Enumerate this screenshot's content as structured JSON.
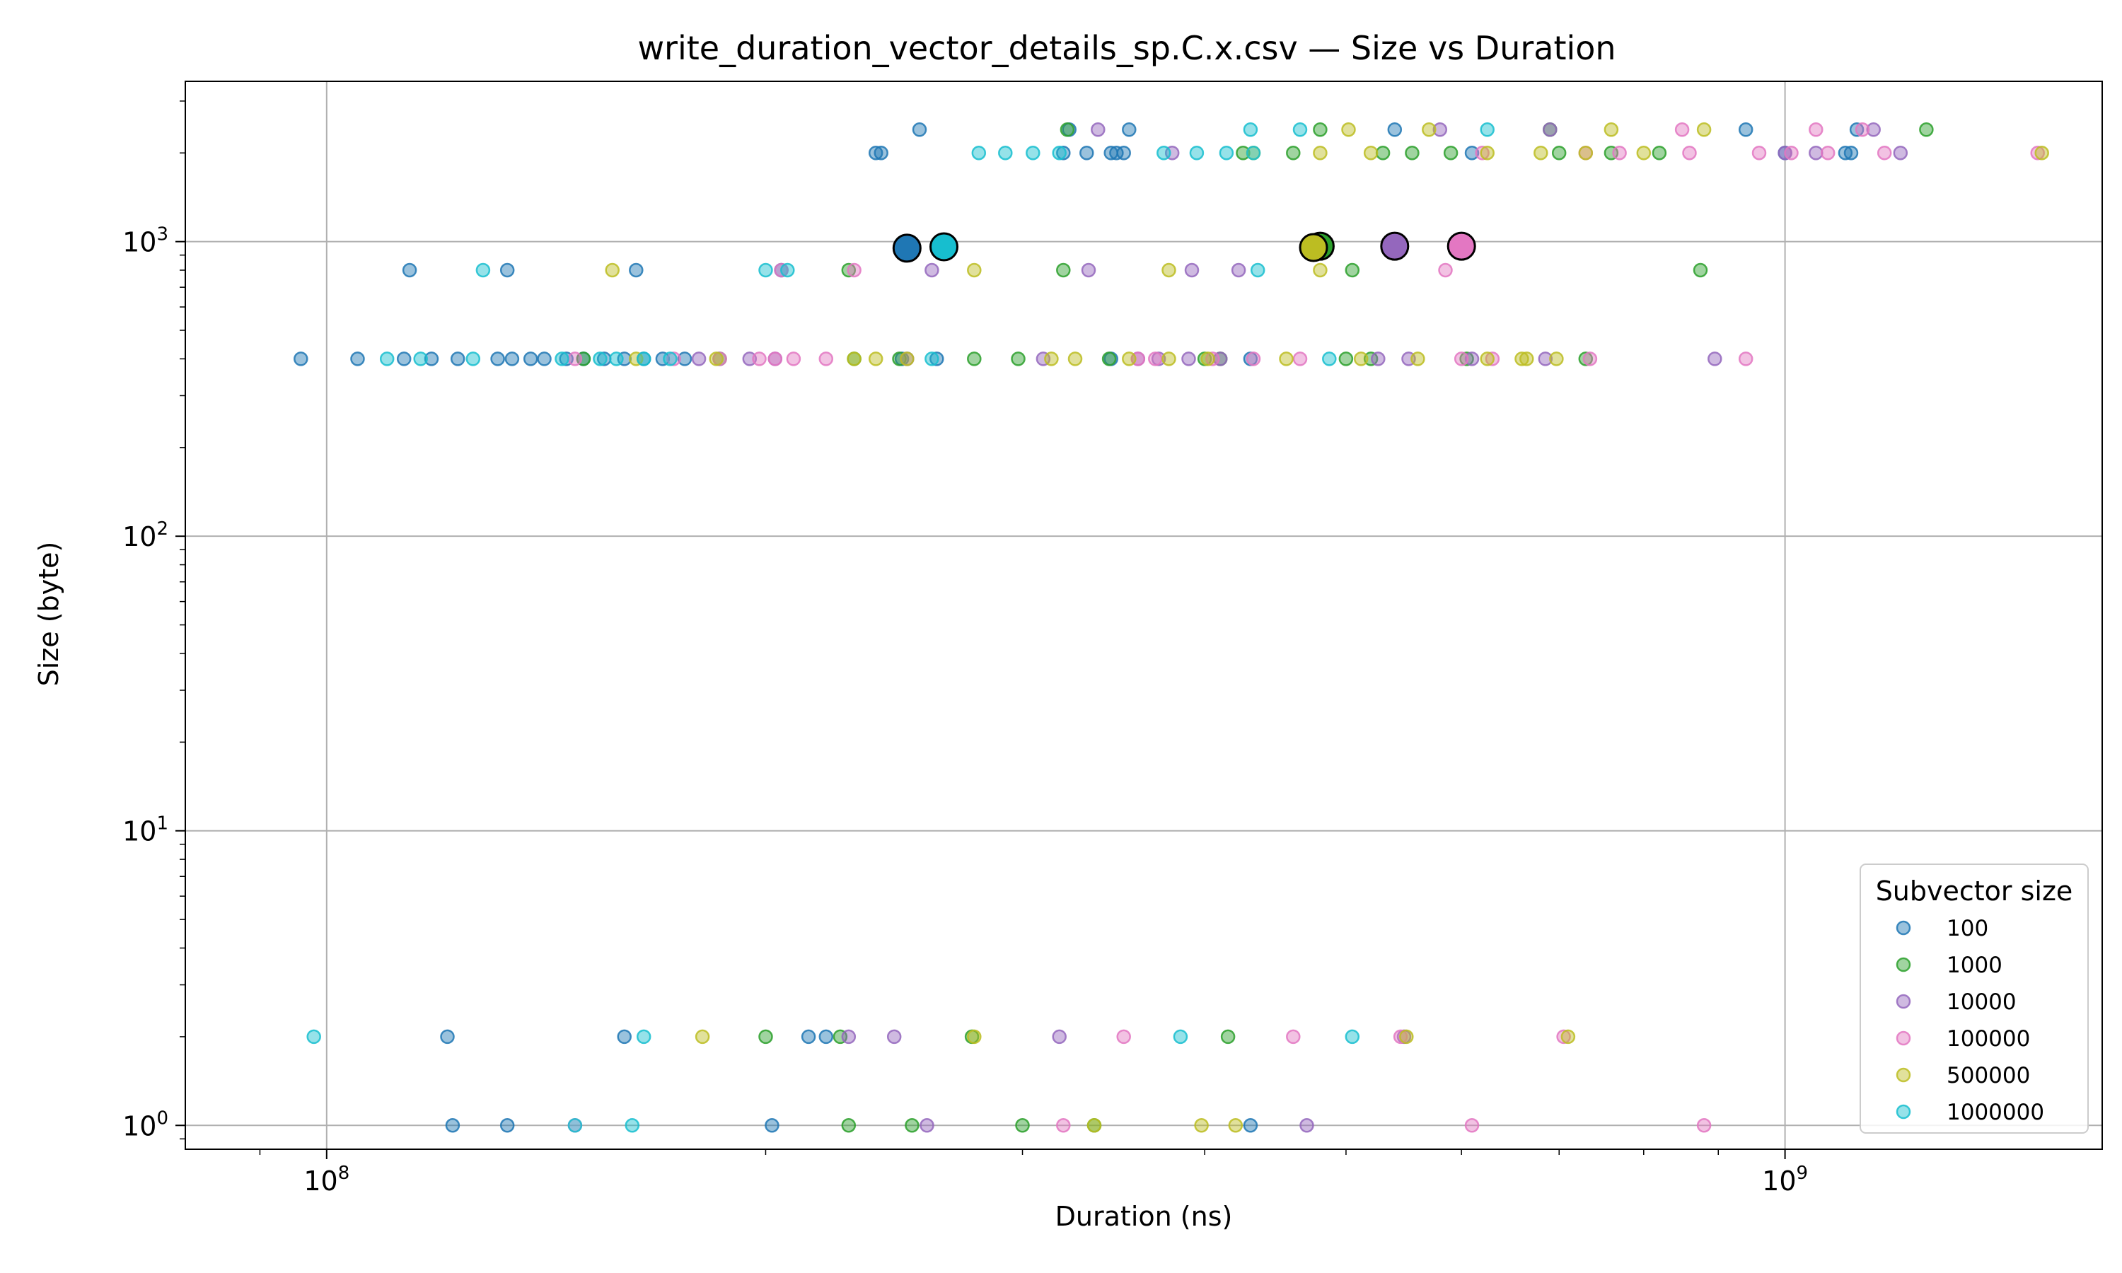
{
  "chart_data": {
    "type": "scatter",
    "title": "write_duration_vector_details_sp.C.x.csv — Size vs Duration",
    "xlabel": "Duration (ns)",
    "ylabel": "Size (byte)",
    "xscale": "log",
    "yscale": "log",
    "xlim": [
      80000000.0,
      1650000000.0
    ],
    "ylim": [
      0.83,
      3500
    ],
    "grid": true,
    "legend": {
      "title": "Subvector size",
      "placement": "lower-right"
    },
    "x_ticks": [
      {
        "value": 100000000.0,
        "base": "10",
        "exp": "8"
      },
      {
        "value": 1000000000.0,
        "base": "10",
        "exp": "9"
      }
    ],
    "y_ticks": [
      {
        "value": 1,
        "base": "10",
        "exp": "0"
      },
      {
        "value": 10,
        "base": "10",
        "exp": "1"
      },
      {
        "value": 100,
        "base": "10",
        "exp": "2"
      },
      {
        "value": 1000,
        "base": "10",
        "exp": "3"
      }
    ],
    "series": [
      {
        "name": "100",
        "color": "#1f77b4",
        "points": [
          [
            96000000,
            400
          ],
          [
            105000000,
            400
          ],
          [
            113000000,
            400
          ],
          [
            118000000,
            400
          ],
          [
            123000000,
            400
          ],
          [
            131000000,
            400
          ],
          [
            134000000,
            400
          ],
          [
            138000000,
            400
          ],
          [
            141000000,
            400
          ],
          [
            146000000,
            400
          ],
          [
            150000000,
            400
          ],
          [
            155000000,
            400
          ],
          [
            160000000,
            400
          ],
          [
            165000000,
            400
          ],
          [
            170000000,
            400
          ],
          [
            176000000,
            400
          ],
          [
            248000000,
            400
          ],
          [
            262000000,
            400
          ],
          [
            345000000,
            400
          ],
          [
            430000000,
            400
          ],
          [
            114000000,
            800
          ],
          [
            133000000,
            800
          ],
          [
            163000000,
            800
          ],
          [
            205000000,
            800
          ],
          [
            238000000,
            2000
          ],
          [
            240000000,
            2000
          ],
          [
            320000000,
            2000
          ],
          [
            332000000,
            2000
          ],
          [
            345000000,
            2000
          ],
          [
            348000000,
            2000
          ],
          [
            352000000,
            2000
          ],
          [
            1000000000,
            2000
          ],
          [
            1100000000,
            2000
          ],
          [
            1110000000,
            2000
          ],
          [
            610000000,
            2000
          ],
          [
            255000000,
            2400
          ],
          [
            323000000,
            2400
          ],
          [
            355000000,
            2400
          ],
          [
            540000000,
            2400
          ],
          [
            940000000,
            2400
          ],
          [
            1120000000,
            2400
          ],
          [
            121000000,
            2
          ],
          [
            160000000,
            2
          ],
          [
            214000000,
            2
          ],
          [
            220000000,
            2
          ],
          [
            122000000,
            1
          ],
          [
            133000000,
            1
          ],
          [
            202000000,
            1
          ],
          [
            430000000,
            1
          ],
          [
            250000000,
            950
          ]
        ]
      },
      {
        "name": "1000",
        "color": "#2ca02c",
        "points": [
          [
            150000000,
            400
          ],
          [
            186000000,
            400
          ],
          [
            230000000,
            400
          ],
          [
            247000000,
            400
          ],
          [
            278000000,
            400
          ],
          [
            298000000,
            400
          ],
          [
            344000000,
            400
          ],
          [
            400000000,
            400
          ],
          [
            410000000,
            400
          ],
          [
            500000000,
            400
          ],
          [
            520000000,
            400
          ],
          [
            605000000,
            400
          ],
          [
            730000000,
            400
          ],
          [
            228000000,
            800
          ],
          [
            320000000,
            800
          ],
          [
            505000000,
            800
          ],
          [
            875000000,
            800
          ],
          [
            425000000,
            2000
          ],
          [
            460000000,
            2000
          ],
          [
            530000000,
            2000
          ],
          [
            555000000,
            2000
          ],
          [
            590000000,
            2000
          ],
          [
            700000000,
            2000
          ],
          [
            760000000,
            2000
          ],
          [
            820000000,
            2000
          ],
          [
            322000000,
            2400
          ],
          [
            480000000,
            2400
          ],
          [
            690000000,
            2400
          ],
          [
            1250000000,
            2400
          ],
          [
            200000000,
            2
          ],
          [
            225000000,
            2
          ],
          [
            277000000,
            2
          ],
          [
            415000000,
            2
          ],
          [
            228000000,
            1
          ],
          [
            252000000,
            1
          ],
          [
            300000000,
            1
          ],
          [
            336000000,
            1
          ],
          [
            480000000,
            965
          ]
        ]
      },
      {
        "name": "10000",
        "color": "#9467bd",
        "points": [
          [
            180000000,
            400
          ],
          [
            195000000,
            400
          ],
          [
            203000000,
            400
          ],
          [
            250000000,
            400
          ],
          [
            310000000,
            400
          ],
          [
            360000000,
            400
          ],
          [
            372000000,
            400
          ],
          [
            390000000,
            400
          ],
          [
            410000000,
            400
          ],
          [
            526000000,
            400
          ],
          [
            552000000,
            400
          ],
          [
            610000000,
            400
          ],
          [
            685000000,
            400
          ],
          [
            895000000,
            400
          ],
          [
            260000000,
            800
          ],
          [
            333000000,
            800
          ],
          [
            392000000,
            800
          ],
          [
            422000000,
            800
          ],
          [
            380000000,
            2000
          ],
          [
            1000000000,
            2000
          ],
          [
            1050000000,
            2000
          ],
          [
            1200000000,
            2000
          ],
          [
            338000000,
            2400
          ],
          [
            580000000,
            2400
          ],
          [
            690000000,
            2400
          ],
          [
            1150000000,
            2400
          ],
          [
            228000000,
            2
          ],
          [
            245000000,
            2
          ],
          [
            318000000,
            2
          ],
          [
            548000000,
            2
          ],
          [
            258000000,
            1
          ],
          [
            470000000,
            1
          ],
          [
            540000000,
            965
          ]
        ]
      },
      {
        "name": "100000",
        "color": "#e377c2",
        "points": [
          [
            148000000,
            400
          ],
          [
            173000000,
            400
          ],
          [
            186000000,
            400
          ],
          [
            198000000,
            400
          ],
          [
            203000000,
            400
          ],
          [
            209000000,
            400
          ],
          [
            220000000,
            400
          ],
          [
            360000000,
            400
          ],
          [
            370000000,
            400
          ],
          [
            405000000,
            400
          ],
          [
            432000000,
            400
          ],
          [
            465000000,
            400
          ],
          [
            600000000,
            400
          ],
          [
            630000000,
            400
          ],
          [
            735000000,
            400
          ],
          [
            940000000,
            400
          ],
          [
            205000000,
            800
          ],
          [
            230000000,
            800
          ],
          [
            585000000,
            800
          ],
          [
            620000000,
            2000
          ],
          [
            730000000,
            2000
          ],
          [
            770000000,
            2000
          ],
          [
            860000000,
            2000
          ],
          [
            960000000,
            2000
          ],
          [
            1010000000,
            2000
          ],
          [
            1070000000,
            2000
          ],
          [
            1170000000,
            2000
          ],
          [
            1490000000,
            2000
          ],
          [
            850000000,
            2400
          ],
          [
            1050000000,
            2400
          ],
          [
            1130000000,
            2400
          ],
          [
            352000000,
            2
          ],
          [
            460000000,
            2
          ],
          [
            545000000,
            2
          ],
          [
            705000000,
            2
          ],
          [
            148000000,
            1
          ],
          [
            320000000,
            1
          ],
          [
            610000000,
            1
          ],
          [
            880000000,
            1
          ],
          [
            600000000,
            965
          ]
        ]
      },
      {
        "name": "500000",
        "color": "#bcbd22",
        "points": [
          [
            163000000,
            400
          ],
          [
            185000000,
            400
          ],
          [
            230000000,
            400
          ],
          [
            238000000,
            400
          ],
          [
            250000000,
            400
          ],
          [
            314000000,
            400
          ],
          [
            326000000,
            400
          ],
          [
            355000000,
            400
          ],
          [
            378000000,
            400
          ],
          [
            402000000,
            400
          ],
          [
            455000000,
            400
          ],
          [
            512000000,
            400
          ],
          [
            560000000,
            400
          ],
          [
            625000000,
            400
          ],
          [
            660000000,
            400
          ],
          [
            665000000,
            400
          ],
          [
            697000000,
            400
          ],
          [
            157000000,
            800
          ],
          [
            278000000,
            800
          ],
          [
            378000000,
            800
          ],
          [
            480000000,
            800
          ],
          [
            432000000,
            2000
          ],
          [
            480000000,
            2000
          ],
          [
            520000000,
            2000
          ],
          [
            625000000,
            2000
          ],
          [
            680000000,
            2000
          ],
          [
            730000000,
            2000
          ],
          [
            800000000,
            2000
          ],
          [
            1500000000,
            2000
          ],
          [
            502000000,
            2400
          ],
          [
            570000000,
            2400
          ],
          [
            760000000,
            2400
          ],
          [
            880000000,
            2400
          ],
          [
            181000000,
            2
          ],
          [
            278000000,
            2
          ],
          [
            550000000,
            2
          ],
          [
            710000000,
            2
          ],
          [
            336000000,
            1
          ],
          [
            398000000,
            1
          ],
          [
            420000000,
            1
          ],
          [
            475000000,
            955
          ]
        ]
      },
      {
        "name": "1000000",
        "color": "#17becf",
        "points": [
          [
            110000000,
            400
          ],
          [
            116000000,
            400
          ],
          [
            126000000,
            400
          ],
          [
            145000000,
            400
          ],
          [
            154000000,
            400
          ],
          [
            158000000,
            400
          ],
          [
            165000000,
            400
          ],
          [
            172000000,
            400
          ],
          [
            260000000,
            400
          ],
          [
            487000000,
            400
          ],
          [
            128000000,
            800
          ],
          [
            200000000,
            800
          ],
          [
            207000000,
            800
          ],
          [
            435000000,
            800
          ],
          [
            280000000,
            2000
          ],
          [
            292000000,
            2000
          ],
          [
            305000000,
            2000
          ],
          [
            318000000,
            2000
          ],
          [
            375000000,
            2000
          ],
          [
            395000000,
            2000
          ],
          [
            414000000,
            2000
          ],
          [
            432000000,
            2000
          ],
          [
            430000000,
            2400
          ],
          [
            465000000,
            2400
          ],
          [
            625000000,
            2400
          ],
          [
            98000000,
            2
          ],
          [
            165000000,
            2
          ],
          [
            385000000,
            2
          ],
          [
            505000000,
            2
          ],
          [
            148000000,
            1
          ],
          [
            162000000,
            1
          ],
          [
            265000000,
            960
          ]
        ]
      }
    ]
  }
}
